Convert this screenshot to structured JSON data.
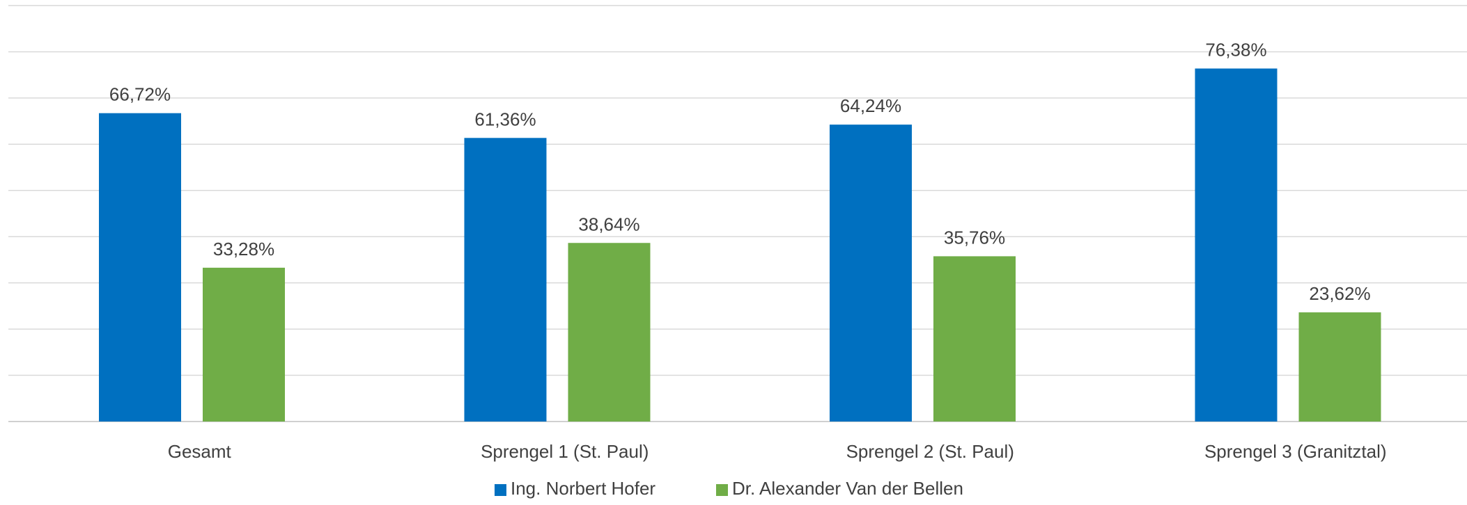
{
  "chart_data": {
    "type": "bar",
    "title": "",
    "xlabel": "",
    "ylabel": "",
    "categories": [
      "Gesamt",
      "Sprengel 1 (St. Paul)",
      "Sprengel 2 (St. Paul)",
      "Sprengel 3 (Granitztal)"
    ],
    "series": [
      {
        "name": "Ing. Norbert Hofer",
        "color": "#0070C0",
        "values": [
          66.72,
          61.36,
          64.24,
          76.38
        ],
        "labels": [
          "66,72%",
          "61,36%",
          "64,24%",
          "76,38%"
        ]
      },
      {
        "name": "Dr. Alexander Van der Bellen",
        "color": "#70AD47",
        "values": [
          33.28,
          38.64,
          35.76,
          23.62
        ],
        "labels": [
          "33,28%",
          "38,64%",
          "35,76%",
          "23,62%"
        ]
      }
    ],
    "ylim": [
      0,
      90
    ],
    "gridlines": true,
    "axis_values_shown": false,
    "legend_position": "bottom"
  }
}
